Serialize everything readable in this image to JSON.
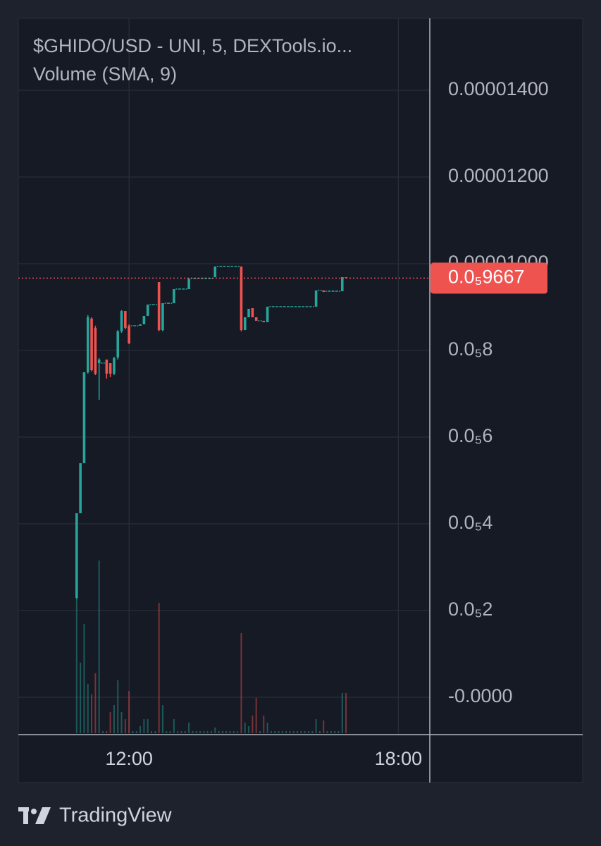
{
  "chart_data": {
    "type": "candlestick",
    "title": "$GHIDO/USD - UNI, 5, DEXTools.io...",
    "subtitle": "Volume (SMA, 9)",
    "brand": "TradingView",
    "up_color": "#26a69a",
    "down_color": "#ef5350",
    "x": [
      650,
      655,
      660,
      665,
      670,
      675,
      680,
      685,
      690,
      695,
      700,
      705,
      710,
      715,
      720,
      725,
      730,
      735,
      740,
      745,
      750,
      755,
      760,
      765,
      770,
      775,
      780,
      785,
      790,
      795,
      800,
      805,
      810,
      815,
      820,
      825,
      830,
      835,
      840,
      845,
      850,
      855,
      860,
      865,
      870,
      875,
      880,
      885,
      890,
      895,
      900,
      905,
      910,
      915,
      920,
      925,
      930,
      935,
      940,
      945,
      950,
      955,
      960,
      965,
      970,
      975,
      980,
      985,
      990,
      995,
      1000,
      1005,
      1010
    ],
    "open": [
      2.293e-06,
      4.244e-06,
      5.398e-06,
      7.496e-06,
      8.732e-06,
      8.52e-06,
      7.707e-06,
      7.707e-06,
      7.789e-06,
      7.707e-06,
      7.463e-06,
      7.837e-06,
      8.439e-06,
      8.91e-06,
      8.569e-06,
      8.569e-06,
      8.569e-06,
      8.569e-06,
      8.602e-06,
      8.797e-06,
      9.057e-06,
      9.057e-06,
      9.577e-06,
      8.471e-06,
      9.089e-06,
      9.089e-06,
      9.089e-06,
      9.415e-06,
      9.415e-06,
      9.415e-06,
      9.415e-06,
      9.658e-06,
      9.658e-06,
      9.658e-06,
      9.658e-06,
      9.658e-06,
      9.658e-06,
      9.691e-06,
      9.935e-06,
      9.935e-06,
      9.935e-06,
      9.935e-06,
      9.935e-06,
      9.935e-06,
      9.935e-06,
      8.471e-06,
      8.764e-06,
      8.976e-06,
      8.764e-06,
      8.683e-06,
      8.683e-06,
      8.65e-06,
      9.008e-06,
      9.008e-06,
      9.008e-06,
      9.008e-06,
      9.008e-06,
      9.008e-06,
      9.008e-06,
      9.008e-06,
      9.008e-06,
      9.008e-06,
      9.008e-06,
      9.008e-06,
      9.008e-06,
      9.382e-06,
      9.382e-06,
      9.366e-06,
      9.366e-06,
      9.366e-06,
      9.366e-06,
      9.366e-06,
      9.691e-06
    ],
    "high": [
      4.244e-06,
      5.398e-06,
      7.496e-06,
      8.813e-06,
      8.764e-06,
      8.569e-06,
      7.821e-06,
      7.707e-06,
      7.789e-06,
      7.707e-06,
      7.854e-06,
      8.471e-06,
      8.927e-06,
      8.91e-06,
      8.602e-06,
      8.569e-06,
      8.569e-06,
      8.602e-06,
      8.797e-06,
      9.057e-06,
      9.057e-06,
      9.057e-06,
      9.577e-06,
      9.089e-06,
      9.089e-06,
      9.089e-06,
      9.415e-06,
      9.415e-06,
      9.415e-06,
      9.415e-06,
      9.658e-06,
      9.658e-06,
      9.658e-06,
      9.658e-06,
      9.658e-06,
      9.658e-06,
      9.658e-06,
      9.935e-06,
      9.935e-06,
      9.935e-06,
      9.935e-06,
      9.935e-06,
      9.935e-06,
      9.935e-06,
      9.935e-06,
      8.764e-06,
      8.959e-06,
      8.976e-06,
      8.764e-06,
      8.683e-06,
      8.683e-06,
      9.008e-06,
      9.008e-06,
      9.008e-06,
      9.008e-06,
      9.008e-06,
      9.008e-06,
      9.008e-06,
      9.008e-06,
      9.008e-06,
      9.008e-06,
      9.008e-06,
      9.008e-06,
      9.008e-06,
      9.382e-06,
      9.382e-06,
      9.382e-06,
      9.366e-06,
      9.366e-06,
      9.366e-06,
      9.366e-06,
      9.691e-06,
      9.691e-06
    ],
    "low": [
      2.26e-06,
      4.244e-06,
      5.398e-06,
      7.463e-06,
      7.512e-06,
      7.431e-06,
      6.862e-06,
      7.707e-06,
      7.35e-06,
      7.382e-06,
      7.431e-06,
      7.789e-06,
      8.406e-06,
      8.488e-06,
      8.146e-06,
      8.569e-06,
      8.569e-06,
      8.569e-06,
      8.602e-06,
      8.797e-06,
      9.057e-06,
      9.057e-06,
      8.439e-06,
      8.439e-06,
      9.089e-06,
      9.089e-06,
      9.089e-06,
      9.415e-06,
      9.415e-06,
      9.415e-06,
      9.415e-06,
      9.658e-06,
      9.658e-06,
      9.658e-06,
      9.658e-06,
      9.658e-06,
      9.658e-06,
      9.691e-06,
      9.935e-06,
      9.935e-06,
      9.935e-06,
      9.935e-06,
      9.935e-06,
      9.935e-06,
      8.439e-06,
      8.471e-06,
      8.764e-06,
      8.764e-06,
      8.683e-06,
      8.683e-06,
      8.65e-06,
      8.65e-06,
      9.008e-06,
      9.008e-06,
      9.008e-06,
      9.008e-06,
      9.008e-06,
      9.008e-06,
      9.008e-06,
      9.008e-06,
      9.008e-06,
      9.008e-06,
      9.008e-06,
      9.008e-06,
      9.008e-06,
      9.382e-06,
      9.35e-06,
      9.366e-06,
      9.366e-06,
      9.366e-06,
      9.366e-06,
      9.366e-06,
      9.667e-06
    ],
    "close": [
      4.244e-06,
      5.398e-06,
      7.496e-06,
      8.764e-06,
      7.545e-06,
      7.463e-06,
      7.789e-06,
      7.707e-06,
      7.463e-06,
      7.463e-06,
      7.821e-06,
      8.439e-06,
      8.91e-06,
      8.52e-06,
      8.163e-06,
      8.569e-06,
      8.569e-06,
      8.602e-06,
      8.797e-06,
      9.057e-06,
      9.057e-06,
      9.057e-06,
      8.471e-06,
      9.089e-06,
      9.089e-06,
      9.089e-06,
      9.415e-06,
      9.415e-06,
      9.415e-06,
      9.415e-06,
      9.658e-06,
      9.658e-06,
      9.658e-06,
      9.658e-06,
      9.658e-06,
      9.658e-06,
      9.658e-06,
      9.935e-06,
      9.935e-06,
      9.935e-06,
      9.935e-06,
      9.935e-06,
      9.935e-06,
      9.935e-06,
      8.471e-06,
      8.764e-06,
      8.959e-06,
      8.764e-06,
      8.683e-06,
      8.683e-06,
      8.65e-06,
      9.008e-06,
      9.008e-06,
      9.008e-06,
      9.008e-06,
      9.008e-06,
      9.008e-06,
      9.008e-06,
      9.008e-06,
      9.008e-06,
      9.008e-06,
      9.008e-06,
      9.008e-06,
      9.008e-06,
      9.382e-06,
      9.382e-06,
      9.35e-06,
      9.366e-06,
      9.366e-06,
      9.366e-06,
      9.366e-06,
      9.691e-06,
      9.667e-06
    ],
    "volume": [
      190,
      100,
      155,
      70,
      55,
      85,
      245,
      3,
      3,
      30,
      40,
      75,
      30,
      20,
      60,
      3,
      3,
      10,
      20,
      20,
      3,
      3,
      185,
      40,
      3,
      3,
      20,
      3,
      3,
      3,
      15,
      3,
      3,
      3,
      3,
      3,
      3,
      8,
      3,
      3,
      3,
      3,
      3,
      3,
      142,
      15,
      10,
      25,
      50,
      3,
      25,
      15,
      3,
      3,
      3,
      3,
      3,
      3,
      3,
      3,
      3,
      3,
      3,
      3,
      20,
      3,
      18,
      3,
      3,
      3,
      3,
      57,
      57
    ],
    "xlim": [
      572,
      1122
    ],
    "xticks": [
      {
        "value": 720,
        "label": "12:00"
      },
      {
        "value": 1080,
        "label": "18:00"
      }
    ],
    "ylim": [
      -8.62e-07,
      1.566e-05
    ],
    "yticks": [
      {
        "value": 0,
        "label": "-0.0000"
      },
      {
        "value": 2e-06,
        "label": "0.0₅2"
      },
      {
        "value": 4e-06,
        "label": "0.0₅4"
      },
      {
        "value": 6e-06,
        "label": "0.0₅6"
      },
      {
        "value": 8e-06,
        "label": "0.0₅8"
      },
      {
        "value": 1e-05,
        "label": "0.00001000"
      },
      {
        "value": 1.2e-05,
        "label": "0.00001200"
      },
      {
        "value": 1.4e-05,
        "label": "0.00001400"
      }
    ],
    "last_price": {
      "value": 9.667e-06,
      "label": "0.0₅9667"
    },
    "grid": true
  }
}
